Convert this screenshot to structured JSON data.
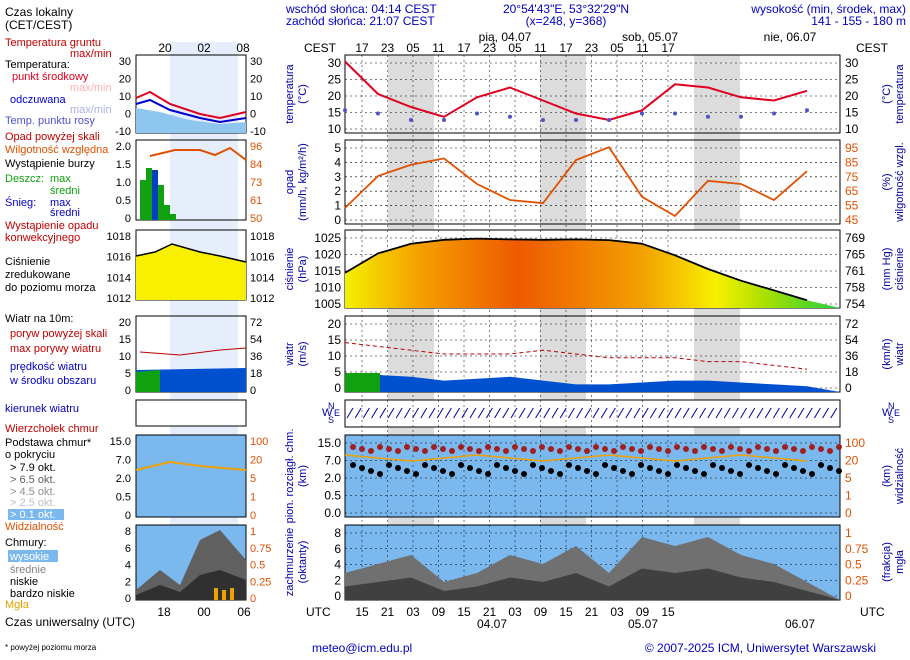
{
  "header": {
    "sunrise": "wschód słońca: 04:14 CEST",
    "sunset": "zachód słońca: 21:07 CEST",
    "coords": "20°54'43\"E, 53°32'29\"N",
    "grid": "(x=248,  y=368)",
    "height_title": "wysokość (min, środek, max)",
    "height_values": "141 - 155 - 180 m"
  },
  "legend": {
    "local_time": "Czas lokalny",
    "local_time_sub": "(CET/CEST)",
    "ground_temp": "Temperatura gruntu",
    "ground_temp_sub": "max/min",
    "temperature": "Temperatura:",
    "mid_point": "punkt środkowy",
    "spread": "odczuwana",
    "max_min": "max/min",
    "dew_point": "Temp. punktu rosy",
    "precip_over": "Opad powyżej skali",
    "humidity": "Wilgotność względna",
    "storm": "Wystąpienie burzy",
    "rain": "Deszcz:",
    "snow": "Śnieg:",
    "max": "max",
    "mean": "średni",
    "precip_occurrence": "Wystąpienie opadu",
    "convective": "konwekcyjnego",
    "pressure1": "Ciśnienie",
    "pressure2": "zredukowane",
    "pressure3": "do poziomu morza",
    "wind_title": "Wiatr na 10m:",
    "gust_over": "poryw powyżej skali",
    "gust_max": "max porywy wiatru",
    "wind_mean1": "prędkość wiatru",
    "wind_mean2": "w środku obszaru",
    "wind_dir": "kierunek wiatru",
    "cloud_top": "Wierzchołek chmur",
    "cloud_base1": "Podstawa chmur*",
    "cloud_base2": "o pokryciu",
    "okt1": "> 7.9 okt.",
    "okt2": "> 6.5 okt.",
    "okt3": "> 4.5 okt.",
    "okt4": "> 2.5 okt.",
    "okt5": "> 0.1 okt.",
    "visibility": "Widzialność",
    "clouds": "Chmury:",
    "high": "wysokie",
    "medium": "średnie",
    "low": "niskie",
    "very_low": "bardzo niskie",
    "fog": "Mgła",
    "utc": "Czas uniwersalny (UTC)",
    "footnote": "* powyżej poziomu morza"
  },
  "small_axis": {
    "top_ticks": [
      "20",
      "02",
      "08"
    ],
    "bottom_ticks": [
      "18",
      "00",
      "06"
    ],
    "temp_left": [
      "30",
      "20",
      "10",
      "0",
      "-10"
    ],
    "temp_right": [
      "30",
      "20",
      "10",
      "0",
      "-10"
    ],
    "precip_left": [
      "2.0",
      "1.5",
      "1.0",
      "0.5",
      "0"
    ],
    "hum_right": [
      "96",
      "84",
      "73",
      "61",
      "50"
    ],
    "press_left": [
      "1018",
      "1016",
      "1014",
      "1012"
    ],
    "press_right": [
      "1018",
      "1016",
      "1014",
      "1012"
    ],
    "wind_left": [
      "20",
      "15",
      "10",
      "5",
      "0"
    ],
    "wind_right": [
      "72",
      "54",
      "36",
      "18",
      "0"
    ],
    "cb_left": [
      "15.0",
      "7.0",
      "2.0",
      "0.5",
      "0"
    ],
    "vis_right": [
      "100",
      "20",
      "5",
      "1",
      "0"
    ],
    "cl_left": [
      "8",
      "6",
      "4",
      "2",
      "0"
    ],
    "cl_right": [
      "1",
      "0.75",
      "0.5",
      "0.25",
      "0"
    ]
  },
  "main_axis": {
    "cest": "CEST",
    "utc": "UTC",
    "top_hours": [
      "17",
      "23",
      "05",
      "11",
      "17",
      "23",
      "05",
      "11",
      "17",
      "23",
      "05",
      "11",
      "17"
    ],
    "bottom_hours": [
      "15",
      "21",
      "03",
      "09",
      "15",
      "21",
      "03",
      "09",
      "15",
      "21",
      "03",
      "09",
      "15"
    ],
    "top_days": [
      "pią, 04.07",
      "sob, 05.07",
      "nie, 06.07"
    ],
    "bottom_dates": [
      "04.07",
      "05.07",
      "06.07"
    ],
    "temp_ticks": [
      "30",
      "25",
      "20",
      "15",
      "10"
    ],
    "precip_ticks": [
      "5",
      "4",
      "3",
      "2",
      "1",
      "0"
    ],
    "hum_ticks": [
      "95",
      "85",
      "75",
      "65",
      "55",
      "45"
    ],
    "press_ticks": [
      "1025",
      "1020",
      "1015",
      "1010",
      "1005"
    ],
    "mmhg_ticks": [
      "769",
      "765",
      "761",
      "758",
      "754"
    ],
    "wind_ticks": [
      "20",
      "15",
      "10",
      "5",
      "0"
    ],
    "kmh_ticks": [
      "72",
      "54",
      "36",
      "18",
      "0"
    ],
    "cb_ticks": [
      "15.0",
      "7.0",
      "2.0",
      "0.5",
      "0.0"
    ],
    "vis_ticks": [
      "100",
      "20",
      "5",
      "1",
      "0"
    ],
    "cl_ticks": [
      "8",
      "6",
      "4",
      "2",
      "0"
    ],
    "fog_ticks": [
      "1",
      "0.75",
      "0.5",
      "0.25",
      "0"
    ]
  },
  "panel_titles": {
    "temp_l": "temperatura",
    "temp_l2": "(°C)",
    "temp_r": "temperatura",
    "temp_r2": "(°C)",
    "precip_l": "opad",
    "precip_l2": "(mm/h, kg/m²/h)",
    "precip_r": "wilgotność wzgl.",
    "precip_r2": "(%)",
    "press_l": "ciśnienie",
    "press_l2": "(hPa)",
    "press_r": "ciśnienie",
    "press_r2": "(mm Hg)",
    "wind_l": "wiatr",
    "wind_l2": "(m/s)",
    "wind_r": "wiatr",
    "wind_r2": "(km/h)",
    "cb_l": "pion. rozciągł. chm.",
    "cb_l2": "(km)",
    "cb_r": "widzialność",
    "cb_r2": "(km)",
    "cl_l": "zachmurzenie",
    "cl_l2": "(oktanty)",
    "cl_r": "mgła",
    "cl_r2": "(frakcja)"
  },
  "compass": {
    "n": "N",
    "s": "S",
    "w": "W",
    "e": "E"
  },
  "footer": {
    "email": "meteo@icm.edu.pl",
    "copyright": "© 2007-2025 ICM, Uniwersytet Warszawski"
  },
  "colors": {
    "temperature": "#e00020",
    "dew_point": "#5050d0",
    "humidity": "#e05000",
    "pressure_line": "#000000",
    "wind_mean": "#0050d0",
    "wind_gust": "#c00000",
    "cloud_panel_bg": "#7ab8ee",
    "night": "#dcdcdc"
  },
  "chart_data": [
    {
      "type": "line",
      "title": "temperatura (°C)",
      "ylim": [
        7,
        31
      ],
      "x_hours": [
        0,
        6,
        12,
        18,
        24,
        30,
        36,
        42,
        48,
        54,
        60,
        66,
        72,
        78,
        84
      ],
      "series": [
        {
          "name": "punkt środkowy",
          "values": [
            29,
            19,
            15,
            12,
            18,
            21,
            17,
            13,
            11,
            14,
            22,
            21,
            18,
            17,
            20
          ]
        },
        {
          "name": "Temp. punktu rosy",
          "values": [
            14,
            13,
            11,
            11,
            13,
            12,
            11,
            11,
            11,
            13,
            13,
            12,
            12,
            13,
            14
          ]
        }
      ]
    },
    {
      "type": "line",
      "title": "wilgotność wzgl. (%)",
      "ylim": [
        45,
        95
      ],
      "x_hours": [
        0,
        6,
        12,
        18,
        24,
        30,
        36,
        42,
        48,
        54,
        60,
        66,
        72,
        78,
        84
      ],
      "values": [
        55,
        75,
        82,
        86,
        70,
        60,
        58,
        85,
        93,
        62,
        50,
        72,
        70,
        60,
        78
      ]
    },
    {
      "type": "area",
      "title": "ciśnienie (hPa)",
      "ylim": [
        1005,
        1025
      ],
      "x_hours": [
        0,
        6,
        12,
        18,
        24,
        30,
        36,
        42,
        48,
        54,
        60,
        66,
        72,
        78,
        84
      ],
      "values": [
        1014,
        1019,
        1021.5,
        1022.5,
        1022.8,
        1022.6,
        1022.5,
        1022.6,
        1022.4,
        1021.5,
        1018.5,
        1015,
        1012,
        1009.5,
        1007
      ]
    },
    {
      "type": "line",
      "title": "wiatr (m/s)",
      "ylim": [
        0,
        20
      ],
      "x_hours": [
        0,
        6,
        12,
        18,
        24,
        30,
        36,
        42,
        48,
        54,
        60,
        66,
        72,
        78,
        84
      ],
      "series": [
        {
          "name": "prędkość wiatru",
          "values": [
            5,
            4.5,
            4,
            3,
            3.5,
            4,
            3,
            2,
            2,
            2.5,
            3,
            3,
            2.5,
            2,
            1.5
          ]
        },
        {
          "name": "max porywy wiatru",
          "values": [
            13,
            12,
            11,
            10,
            10,
            10,
            11,
            10,
            9,
            9,
            9,
            8,
            8,
            7,
            6
          ]
        }
      ]
    },
    {
      "type": "area",
      "title": "zachmurzenie (oktanty)",
      "ylim": [
        0,
        8
      ],
      "x_hours": [
        0,
        6,
        12,
        18,
        24,
        30,
        36,
        42,
        48,
        54,
        60,
        66,
        72,
        78,
        84
      ],
      "values": [
        3,
        4,
        5,
        2,
        3,
        5,
        4,
        6,
        3,
        7,
        6,
        7,
        5,
        4,
        2
      ]
    }
  ]
}
